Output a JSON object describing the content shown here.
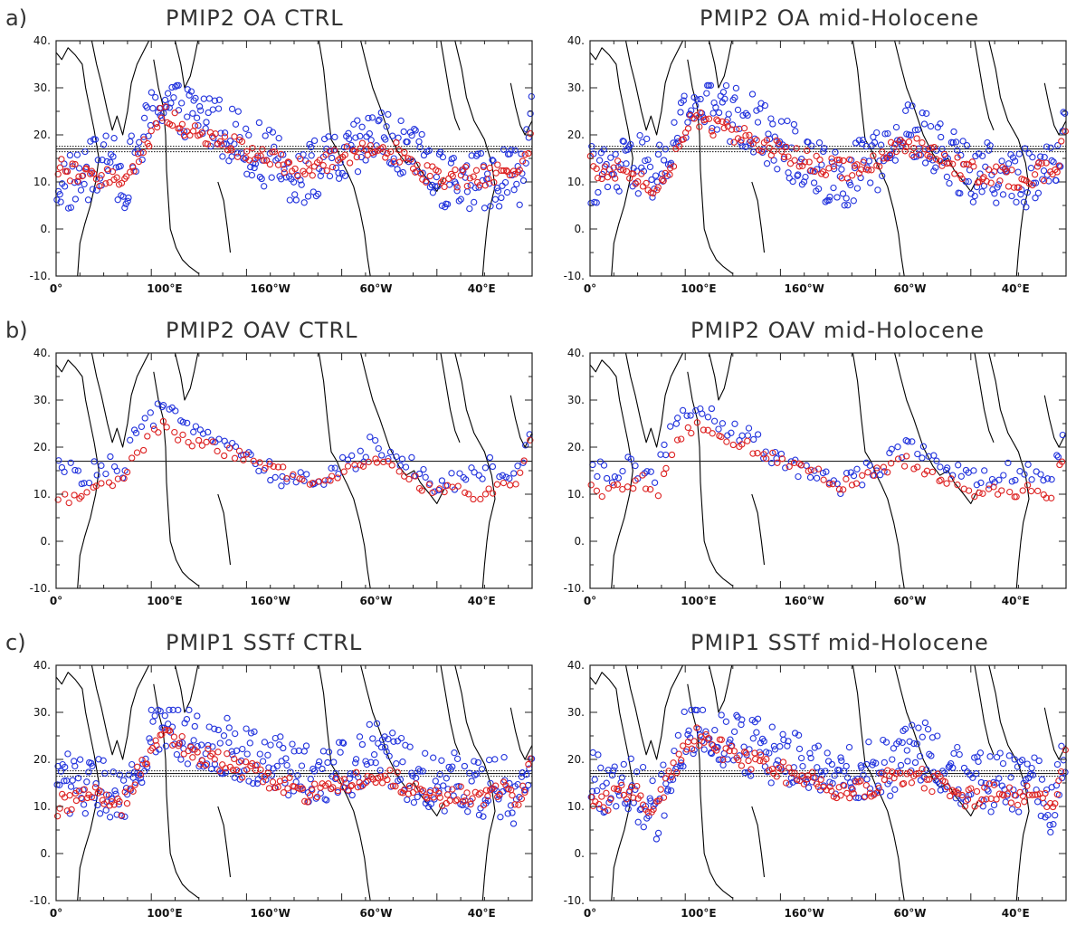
{
  "colors": {
    "blue": "#2233dd",
    "red": "#dd2222",
    "coast": "#000000",
    "frame": "#222222"
  },
  "x_tick_labels": [
    "0°",
    "100°E",
    "160°W",
    "60°W",
    "40°E"
  ],
  "y_tick_labels": [
    "40.",
    "30.",
    "20.",
    "10.",
    "0.",
    "-10."
  ],
  "chart_data": [
    {
      "type": "scatter",
      "row_label": "a)",
      "title": "PMIP2 OA CTRL",
      "style": "dense",
      "reference_line_y": 17,
      "xlabel": "",
      "ylabel": "",
      "ylim": [
        -10,
        40
      ],
      "x": [
        0,
        10,
        20,
        30,
        40,
        50,
        60,
        70,
        80,
        90,
        100,
        110,
        120,
        130,
        140,
        150,
        160,
        170,
        180,
        190,
        200,
        210,
        220,
        230,
        240,
        250,
        260,
        270,
        280,
        290,
        300,
        310,
        320,
        330,
        340,
        350,
        360
      ],
      "series": [
        {
          "color": "red",
          "values": [
            13.5,
            12,
            11,
            11,
            12,
            9,
            13,
            19,
            25,
            23,
            21,
            20,
            19,
            18,
            17,
            16,
            15.5,
            14,
            13,
            12.5,
            13,
            15,
            16,
            17,
            18,
            17,
            16,
            14,
            12,
            11,
            11,
            11,
            11,
            11,
            13,
            13,
            20
          ]
        },
        {
          "color": "blue",
          "values": [
            10,
            10,
            11,
            13,
            15,
            10,
            15,
            22,
            28,
            26,
            25,
            24,
            23,
            21,
            19,
            17,
            15,
            13,
            12,
            12,
            13,
            14,
            15,
            17,
            20,
            19,
            17,
            15,
            13,
            11,
            10,
            10,
            10,
            10,
            12,
            11,
            23
          ]
        }
      ]
    },
    {
      "type": "scatter",
      "row_label": "",
      "title": "PMIP2 OA mid-Holocene",
      "style": "dense",
      "reference_line_y": 17,
      "xlabel": "",
      "ylabel": "",
      "ylim": [
        -10,
        40
      ],
      "x": [
        0,
        10,
        20,
        30,
        40,
        50,
        60,
        70,
        80,
        90,
        100,
        110,
        120,
        130,
        140,
        150,
        160,
        170,
        180,
        190,
        200,
        210,
        220,
        230,
        240,
        250,
        260,
        270,
        280,
        290,
        300,
        310,
        320,
        330,
        340,
        350,
        360
      ],
      "series": [
        {
          "color": "red",
          "values": [
            14,
            12,
            13,
            11,
            11,
            8,
            13,
            19,
            24,
            22,
            21,
            20,
            19,
            18,
            17,
            16,
            15,
            14,
            13,
            12.5,
            13,
            14,
            15.5,
            17,
            18,
            17,
            16,
            14,
            13,
            12,
            12,
            11,
            11,
            11,
            12,
            12,
            19
          ]
        },
        {
          "color": "blue",
          "values": [
            12,
            11,
            12,
            13,
            14,
            11,
            16,
            22,
            27,
            26,
            25,
            24,
            23,
            21,
            19,
            17,
            15,
            13,
            12,
            11,
            12,
            14,
            15,
            17,
            20,
            20,
            17,
            15,
            14,
            12,
            12,
            11,
            11,
            11,
            12,
            12,
            22
          ]
        }
      ]
    },
    {
      "type": "scatter",
      "row_label": "b)",
      "title": "PMIP2 OAV CTRL",
      "style": "sparse",
      "reference_line_y": 17,
      "xlabel": "",
      "ylabel": "",
      "ylim": [
        -10,
        40
      ],
      "x": [
        0,
        10,
        20,
        30,
        40,
        50,
        60,
        70,
        80,
        90,
        100,
        110,
        120,
        130,
        140,
        150,
        160,
        170,
        180,
        190,
        200,
        210,
        220,
        230,
        240,
        250,
        260,
        270,
        280,
        290,
        300,
        310,
        320,
        330,
        340,
        350,
        360
      ],
      "series": [
        {
          "color": "red",
          "values": [
            10,
            9,
            10,
            11,
            12,
            13,
            18,
            22,
            25,
            22,
            21,
            21,
            20,
            19,
            18,
            17,
            16,
            15,
            13,
            12,
            13,
            14,
            15,
            16,
            17,
            16,
            14,
            13,
            11,
            11,
            12,
            10,
            10,
            11,
            12,
            13,
            22
          ]
        },
        {
          "color": "blue",
          "values": [
            16,
            15,
            14,
            15,
            16,
            14,
            23,
            25,
            28,
            27,
            26,
            24,
            22,
            20,
            18,
            17,
            15,
            14,
            13,
            12,
            13,
            15,
            16,
            18,
            21,
            20,
            18,
            16,
            13,
            12,
            13,
            14,
            15,
            16,
            15,
            14,
            26
          ]
        }
      ]
    },
    {
      "type": "scatter",
      "row_label": "",
      "title": "PMIP2 OAV mid-Holocene",
      "style": "sparse",
      "reference_line_y": 17,
      "xlabel": "",
      "ylabel": "",
      "ylim": [
        -10,
        40
      ],
      "x": [
        0,
        10,
        20,
        30,
        40,
        50,
        60,
        70,
        80,
        90,
        100,
        110,
        120,
        130,
        140,
        150,
        160,
        170,
        180,
        190,
        200,
        210,
        220,
        230,
        240,
        250,
        260,
        270,
        280,
        290,
        300,
        310,
        320,
        330,
        340,
        350,
        360
      ],
      "series": [
        {
          "color": "red",
          "values": [
            11,
            10,
            11,
            12,
            13,
            9,
            18,
            22,
            25,
            23,
            22,
            21,
            20,
            19,
            18,
            17,
            16,
            15,
            13,
            12,
            13,
            14,
            15,
            16,
            17,
            16,
            14,
            13,
            11,
            10,
            11,
            10,
            10,
            11,
            12,
            8,
            22
          ]
        },
        {
          "color": "blue",
          "values": [
            16,
            15,
            14,
            16,
            15,
            14,
            23,
            26,
            28,
            27,
            25,
            23,
            22,
            20,
            18,
            17,
            15,
            14,
            13,
            12,
            13,
            15,
            16,
            18,
            21,
            20,
            18,
            16,
            14,
            13,
            13,
            14,
            15,
            15,
            15,
            14,
            26
          ]
        }
      ]
    },
    {
      "type": "scatter",
      "row_label": "c)",
      "title": "PMIP1 SSTf CTRL",
      "style": "dense",
      "reference_line_y": 17,
      "xlabel": "",
      "ylabel": "",
      "ylim": [
        -10,
        40
      ],
      "x": [
        0,
        10,
        20,
        30,
        40,
        50,
        60,
        70,
        80,
        90,
        100,
        110,
        120,
        130,
        140,
        150,
        160,
        170,
        180,
        190,
        200,
        210,
        220,
        230,
        240,
        250,
        260,
        270,
        280,
        290,
        300,
        310,
        320,
        330,
        340,
        350,
        360
      ],
      "series": [
        {
          "color": "red",
          "values": [
            10,
            11,
            12,
            13,
            12,
            10,
            16,
            22,
            25,
            24,
            22,
            21,
            20,
            19,
            18,
            17,
            16,
            15,
            14,
            13,
            13,
            14,
            15,
            16,
            17,
            16,
            15,
            14,
            12,
            12,
            13,
            12,
            12,
            13,
            13,
            9,
            21
          ]
        },
        {
          "color": "blue",
          "values": [
            16,
            15,
            14,
            15,
            13,
            10,
            17,
            24,
            28,
            27,
            25,
            24,
            24,
            23,
            22,
            21,
            20,
            19,
            18,
            17,
            17,
            18,
            18,
            19,
            22,
            21,
            19,
            17,
            15,
            14,
            15,
            15,
            14,
            14,
            14,
            11,
            24
          ]
        }
      ]
    },
    {
      "type": "scatter",
      "row_label": "",
      "title": "PMIP1 SSTf mid-Holocene",
      "style": "dense",
      "reference_line_y": 17,
      "xlabel": "",
      "ylabel": "",
      "ylim": [
        -10,
        40
      ],
      "x": [
        0,
        10,
        20,
        30,
        40,
        50,
        60,
        70,
        80,
        90,
        100,
        110,
        120,
        130,
        140,
        150,
        160,
        170,
        180,
        190,
        200,
        210,
        220,
        230,
        240,
        250,
        260,
        270,
        280,
        290,
        300,
        310,
        320,
        330,
        340,
        350,
        360
      ],
      "series": [
        {
          "color": "red",
          "values": [
            11,
            11,
            12,
            13,
            12,
            9,
            16,
            22,
            25,
            24,
            22,
            21,
            20,
            19,
            18,
            17,
            16,
            15,
            14,
            13,
            13,
            14,
            15,
            16,
            17,
            16,
            15,
            14,
            12,
            12,
            13,
            12,
            12,
            13,
            13,
            8,
            21
          ]
        },
        {
          "color": "blue",
          "values": [
            16,
            15,
            14,
            15,
            12,
            9,
            17,
            24,
            28,
            27,
            25,
            24,
            23,
            22,
            21,
            20,
            19,
            18,
            17,
            17,
            17,
            18,
            18,
            19,
            23,
            22,
            20,
            18,
            16,
            15,
            15,
            15,
            14,
            14,
            14,
            10,
            24
          ]
        }
      ]
    }
  ]
}
